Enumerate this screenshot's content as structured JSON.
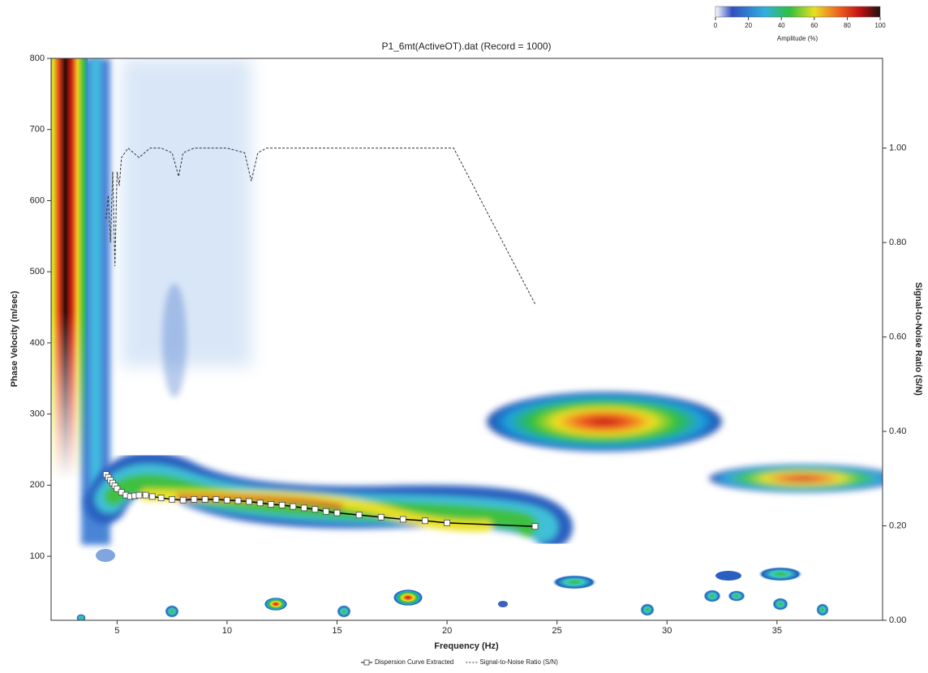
{
  "chart_data": {
    "type": "dispersion",
    "title": "P1_6mt(ActiveOT).dat (Record = 1000)",
    "x_label": "Frequency (Hz)",
    "y_label": "Phase Velocity (m/sec)",
    "y2_label": "Signal-to-Noise Ratio (S/N)",
    "xlim": [
      2,
      39.8
    ],
    "ylim": [
      10,
      800
    ],
    "y2lim": [
      0,
      1.19
    ],
    "xticks": [
      5,
      10,
      15,
      20,
      25,
      30,
      35
    ],
    "yticks": [
      100,
      200,
      300,
      400,
      500,
      600,
      700,
      800
    ],
    "y2ticks": [
      {
        "value": 0,
        "label": "0.00"
      },
      {
        "value": 0.2,
        "label": "0.20"
      },
      {
        "value": 0.4,
        "label": "0.40"
      },
      {
        "value": 0.6,
        "label": "0.60"
      },
      {
        "value": 0.8,
        "label": "0.80"
      },
      {
        "value": 1,
        "label": "1.00"
      }
    ],
    "colorbar": {
      "label": "Amplitude (%)",
      "ticks": [
        0,
        20,
        40,
        60,
        80,
        100
      ],
      "lim": [
        0,
        100
      ]
    },
    "series": [
      {
        "name": "Dispersion Curve Extracted",
        "color": "#000000",
        "x": [
          4.5,
          4.6,
          4.7,
          4.8,
          4.9,
          5.0,
          5.2,
          5.4,
          5.6,
          5.8,
          6.0,
          6.3,
          6.6,
          7.0,
          7.5,
          8.0,
          8.5,
          9.0,
          9.5,
          10.0,
          10.5,
          11.0,
          11.5,
          12.0,
          12.5,
          13.0,
          13.5,
          14.0,
          14.5,
          15.0,
          16.0,
          17.0,
          18.0,
          19.0,
          20.0,
          24.0
        ],
        "values": [
          215,
          211,
          207,
          203,
          199,
          195,
          190,
          186,
          184,
          185,
          186,
          186,
          184,
          182,
          180,
          179,
          180,
          180,
          180,
          179,
          178,
          177,
          175,
          173,
          172,
          170,
          168,
          166,
          163,
          161,
          158,
          155,
          152,
          150,
          147,
          142
        ]
      },
      {
        "name": "Signal-to-Noise Ratio (S/N)",
        "color": "#333333",
        "axis": "y2",
        "dashed": true,
        "x": [
          4.5,
          4.6,
          4.7,
          4.8,
          4.9,
          5.0,
          5.1,
          5.2,
          5.5,
          6.0,
          6.5,
          7.0,
          7.5,
          7.8,
          8.0,
          8.5,
          10.0,
          10.8,
          11.1,
          11.4,
          11.8,
          20.3,
          24.0
        ],
        "values": [
          0.85,
          0.9,
          0.8,
          0.95,
          0.75,
          0.95,
          0.92,
          0.98,
          1.0,
          0.98,
          1.0,
          1.0,
          0.99,
          0.94,
          0.99,
          1.0,
          1.0,
          0.99,
          0.93,
          0.99,
          1.0,
          1.0,
          0.67
        ]
      }
    ]
  }
}
